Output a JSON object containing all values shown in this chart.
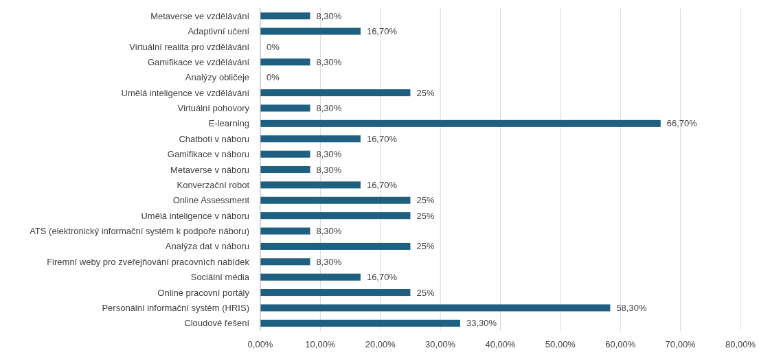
{
  "chart_data": {
    "type": "bar",
    "orientation": "horizontal",
    "categories": [
      "Metaverse ve vzdělávání",
      "Adaptivní učení",
      "Virtuální realita pro vzdělávání",
      "Gamifikace ve vzdělávání",
      "Analýzy obličeje",
      "Umělá inteligence ve vzdělávání",
      "Virtuální pohovory",
      "E-learning",
      "Chatboti v náboru",
      "Gamifikace v náboru",
      "Metaverse v náboru",
      "Konverzační robot",
      "Online Assessment",
      "Umělá inteligence v náboru",
      "ATS (elektronický informační systém k podpoře náboru)",
      "Analýza dat v náboru",
      "Firemní weby pro zveřejňování pracovních nabídek",
      "Sociální média",
      "Online pracovní portály",
      "Personální informační systém (HRIS)",
      "Cloudové řešení"
    ],
    "values": [
      8.3,
      16.7,
      0,
      8.3,
      0,
      25,
      8.3,
      66.7,
      16.7,
      8.3,
      8.3,
      16.7,
      25,
      25,
      8.3,
      25,
      8.3,
      16.7,
      25,
      58.3,
      33.3
    ],
    "value_labels": [
      "8,30%",
      "16,70%",
      "0%",
      "8,30%",
      "0%",
      "25%",
      "8,30%",
      "66,70%",
      "16,70%",
      "8,30%",
      "8,30%",
      "16,70%",
      "25%",
      "25%",
      "8,30%",
      "25%",
      "8,30%",
      "16,70%",
      "25%",
      "58,30%",
      "33,30%"
    ],
    "color": "#1f5f80",
    "xlim": [
      0,
      80
    ],
    "xticks": [
      {
        "value": 0,
        "label": "0,00%"
      },
      {
        "value": 10,
        "label": "10,00%"
      },
      {
        "value": 20,
        "label": "20,00%"
      },
      {
        "value": 30,
        "label": "30,00%"
      },
      {
        "value": 40,
        "label": "40,00%"
      },
      {
        "value": 50,
        "label": "50,00%"
      },
      {
        "value": 60,
        "label": "60,00%"
      },
      {
        "value": 70,
        "label": "70,00%"
      },
      {
        "value": 80,
        "label": "80,00%"
      }
    ],
    "grid": "x"
  }
}
